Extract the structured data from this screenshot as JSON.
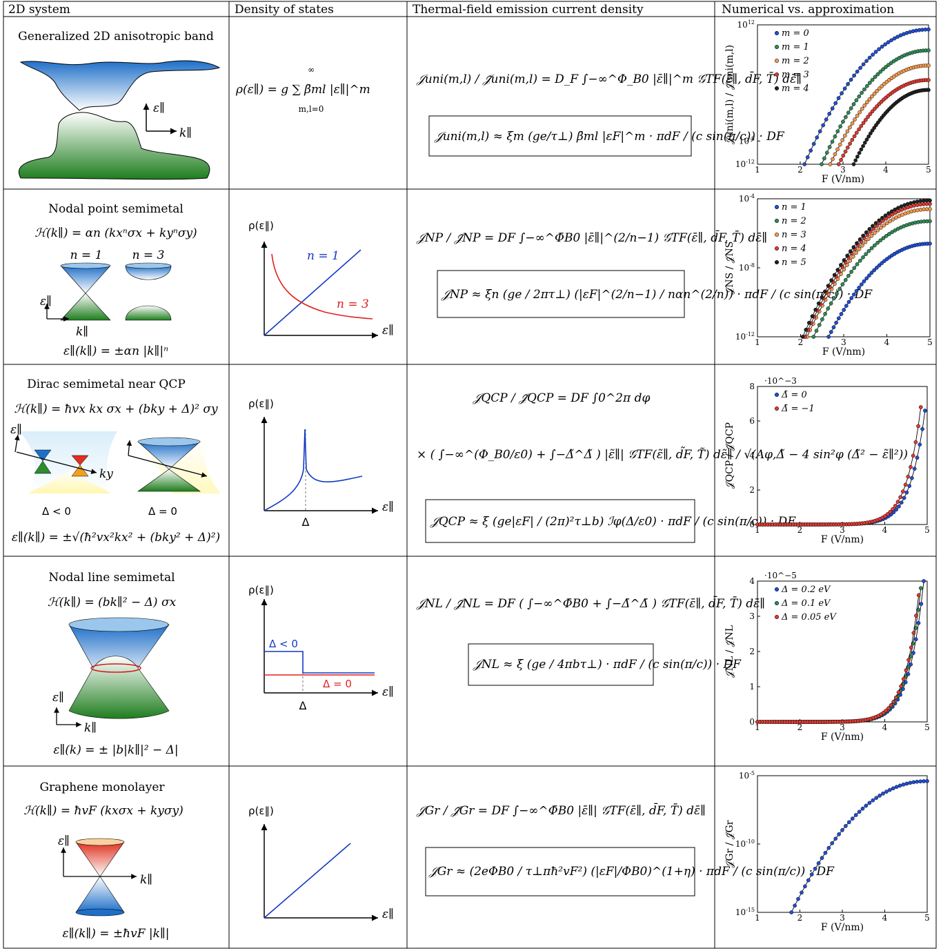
{
  "headers": [
    "2D system",
    "Density of states",
    "Thermal-field emission current density",
    "Numerical vs. approximation"
  ],
  "rows": [
    {
      "system_title": "Generalized 2D anisotropic band",
      "band_labels": {
        "energy": "ε∥",
        "momentum": "k∥"
      },
      "dos_formula": "ρ(ε∥) = g ∑ β̄ml |ε∥|^m",
      "dos_sum_limits": {
        "upper": "∞",
        "lower": "m,l=0"
      },
      "current_formula": "𝒥uni(m,l) / 𝒥̃uni(m,l) = D_F ∫−∞^Φ_B0 |ε̄∥|^m 𝒢TF(ε̄∥, d̄F, T̄) dε̄∥",
      "approx_formula": "𝒥uni(m,l) ≈ ξm (ge/τ⊥) β̄ml |εF|^m · πdF / (c sin(π/c)) · DF"
    },
    {
      "system_title": "Nodal point semimetal",
      "hamiltonian": "ℋ(k∥) = αn (kxⁿσx + kyⁿσy)",
      "cone_labels": [
        "n = 1",
        "n = 3"
      ],
      "band_labels": {
        "energy": "ε∥",
        "momentum": "k∥"
      },
      "dispersion": "ε∥(k∥) = ±αn |k∥|ⁿ",
      "dos_labels": {
        "y": "ρ(ε∥)",
        "x": "ε∥",
        "curve_a": "n = 1",
        "curve_b": "n = 3"
      },
      "current_formula": "𝒥NP / 𝒥̃NP = DF ∫−∞^Φ̄B0 |ε̄∥|^(2/n−1) 𝒢TF(ε̄∥, d̄F, T̄) dε̄∥",
      "approx_formula": "𝒥NP ≈ ξn (ge / 2πτ⊥) (|εF|^(2/n−1) / nαn^(2/n)) · πdF / (c sin(π/c)) · DF"
    },
    {
      "system_title": "Dirac semimetal near QCP",
      "hamiltonian": "ℋ(k∥) = ħvx kx σx + (bky + Δ)² σy",
      "band_labels": {
        "energy": "ε∥",
        "momentum": "ky"
      },
      "panel_labels": [
        "Δ < 0",
        "Δ = 0"
      ],
      "dispersion": "ε∥(k∥) = ±√(ħ²vx²kx² + (bky² + Δ)²)",
      "dos_labels": {
        "y": "ρ(ε∥)",
        "x": "ε∥",
        "mark": "Δ"
      },
      "current_formula_1": "𝒥QCP / 𝒥̃QCP = DF ∫0^2π dφ",
      "current_formula_2": "× ( ∫−∞^(Φ_B0/ε0) + ∫−Δ̃^Δ̃ ) |ε̃∥| 𝒢TF(ε̃∥, d̃F, T̃) dε̃∥ / √(Λφ,Δ̃ − 4 sin²φ (Δ̃² − ε̃∥²))",
      "approx_formula": "𝒥QCP ≈ ξ (ge|εF| / (2π)²τ⊥b) ℐφ(Δ/ε0) · πdF / (c sin(π/c)) · DF"
    },
    {
      "system_title": "Nodal line semimetal",
      "hamiltonian": "ℋ(k∥) = (bk∥² − Δ) σx",
      "band_labels": {
        "energy": "ε∥",
        "momentum": "k∥"
      },
      "dispersion": "ε∥(k) = ± |b|k∥|² − Δ|",
      "dos_labels": {
        "y": "ρ(ε∥)",
        "x": "ε∥",
        "mark": "Δ",
        "curve_a": "Δ < 0",
        "curve_b": "Δ = 0"
      },
      "current_formula": "𝒥NL / 𝒥̃NL = DF ( ∫−∞^Φ̄B0 + ∫−Δ̄^Δ̄ ) 𝒢TF(ε̄∥, d̄F, T̄) dε̄∥",
      "approx_formula": "𝒥NL ≈ ξ (ge / 4πbτ⊥) · πdF / (c sin(π/c)) · DF"
    },
    {
      "system_title": "Graphene monolayer",
      "hamiltonian": "ℋ(k∥) = ħvF (kxσx + kyσy)",
      "band_labels": {
        "energy": "ε∥",
        "momentum": "k∥"
      },
      "dispersion": "ε∥(k∥) = ±ħvF |k∥|",
      "dos_labels": {
        "y": "ρ(ε∥)",
        "x": "ε∥"
      },
      "current_formula": "𝒥Gr / 𝒥̃Gr = DF ∫−∞^Φ̄B0 |ε̄∥| 𝒢TF(ε̄∥, d̄F, T̄) dε̄∥",
      "approx_formula": "𝒥Gr ≈ (2eΦB0 / τ⊥πħ²vF²) (|εF|/ΦB0)^(1+η) · πdF / (c sin(π/c)) · DF"
    }
  ],
  "colors": {
    "blue": "#1f4fd6",
    "green": "#2e8b57",
    "orange": "#f39a4c",
    "red": "#e03a32",
    "black": "#222222",
    "dos_blue": "#1239c4",
    "dos_red": "#e0201e"
  },
  "chart_data": [
    {
      "type": "scatter",
      "xlabel": "F (V/nm)",
      "ylabel": "𝒥uni(m,l) / 𝒥̃uni(m,l)",
      "yscale": "log",
      "xlim": [
        1,
        5
      ],
      "ylim": [
        1e-12,
        1000000000000.0
      ],
      "yticks": [
        "10^12",
        "10^-8",
        "10^-12"
      ],
      "xticks": [
        "1",
        "2",
        "3",
        "4",
        "5"
      ],
      "legend": "top-left",
      "series": [
        {
          "name": "m = 0",
          "color": "#1f4fd6",
          "x0": 2.1,
          "y0": -12,
          "y1": 11.2
        },
        {
          "name": "m = 1",
          "color": "#2e8b57",
          "x0": 2.5,
          "y0": -12,
          "y1": 7.6
        },
        {
          "name": "m = 2",
          "color": "#f39a4c",
          "x0": 2.7,
          "y0": -12,
          "y1": 5.0
        },
        {
          "name": "m = 3",
          "color": "#e03a32",
          "x0": 2.9,
          "y0": -12,
          "y1": 2.5
        },
        {
          "name": "m = 4",
          "color": "#222222",
          "x0": 3.25,
          "y0": -12,
          "y1": 0.8
        }
      ]
    },
    {
      "type": "scatter",
      "xlabel": "F (V/nm)",
      "ylabel": "𝒥NS / 𝒥̃NS",
      "yscale": "log",
      "xlim": [
        1,
        5
      ],
      "ylim": [
        -12,
        -4
      ],
      "yticks": [
        "10^-4",
        "10^-8",
        "10^-12"
      ],
      "xticks": [
        "1",
        "2",
        "3",
        "4",
        "5"
      ],
      "legend": "top-left",
      "series": [
        {
          "name": "n = 1",
          "color": "#1f4fd6",
          "x0": 2.65,
          "y0": -12,
          "y1": -6.6
        },
        {
          "name": "n = 2",
          "color": "#2e8b57",
          "x0": 2.3,
          "y0": -12,
          "y1": -5.3
        },
        {
          "name": "n = 3",
          "color": "#f39a4c",
          "x0": 2.15,
          "y0": -12,
          "y1": -4.6
        },
        {
          "name": "n = 4",
          "color": "#e03a32",
          "x0": 2.1,
          "y0": -12,
          "y1": -4.3
        },
        {
          "name": "n = 5",
          "color": "#222222",
          "x0": 2.05,
          "y0": -12,
          "y1": -4.1
        }
      ]
    },
    {
      "type": "scatter",
      "xlabel": "F (V/nm)",
      "ylabel": "𝒥QCP / 𝒥̃QCP",
      "scale_note": "·10^−3",
      "xlim": [
        1,
        5
      ],
      "ylim": [
        0,
        8
      ],
      "yticks": [
        "0",
        "2",
        "4",
        "6",
        "8"
      ],
      "xticks": [
        "1",
        "2",
        "3",
        "4",
        "5"
      ],
      "legend": "top-left",
      "series": [
        {
          "name": "Δ̄ = 0",
          "color": "#1f4fd6",
          "xend": 4.95,
          "yend": 6.6
        },
        {
          "name": "Δ̄ = −1",
          "color": "#e03a32",
          "xend": 4.85,
          "yend": 6.8
        }
      ]
    },
    {
      "type": "scatter",
      "xlabel": "F (V/nm)",
      "ylabel": "𝒥NL / 𝒥̃NL",
      "scale_note": "·10^−5",
      "xlim": [
        1,
        5
      ],
      "ylim": [
        0,
        4
      ],
      "yticks": [
        "0",
        "1",
        "2",
        "3",
        "4"
      ],
      "xticks": [
        "1",
        "2",
        "3",
        "4",
        "5"
      ],
      "legend": "top-left",
      "series": [
        {
          "name": "Δ = 0.2 eV",
          "color": "#1f4fd6",
          "xend": 4.92,
          "yend": 4.0
        },
        {
          "name": "Δ = 0.1 eV",
          "color": "#2e8b57",
          "xend": 4.85,
          "yend": 3.8
        },
        {
          "name": "Δ = 0.05 eV",
          "color": "#e03a32",
          "xend": 4.8,
          "yend": 3.6
        }
      ]
    },
    {
      "type": "scatter",
      "xlabel": "F (V/nm)",
      "ylabel": "𝒥Gr / 𝒥̃Gr",
      "yscale": "log",
      "xlim": [
        1,
        5
      ],
      "ylim": [
        -15,
        -5
      ],
      "yticks": [
        "10^-5",
        "10^-10",
        "10^-15"
      ],
      "xticks": [
        "1",
        "2",
        "3",
        "4",
        "5"
      ],
      "series": [
        {
          "name": "",
          "color": "#1f4fd6",
          "x0": 1.8,
          "y0": -15,
          "y1": -5.4
        }
      ]
    }
  ]
}
